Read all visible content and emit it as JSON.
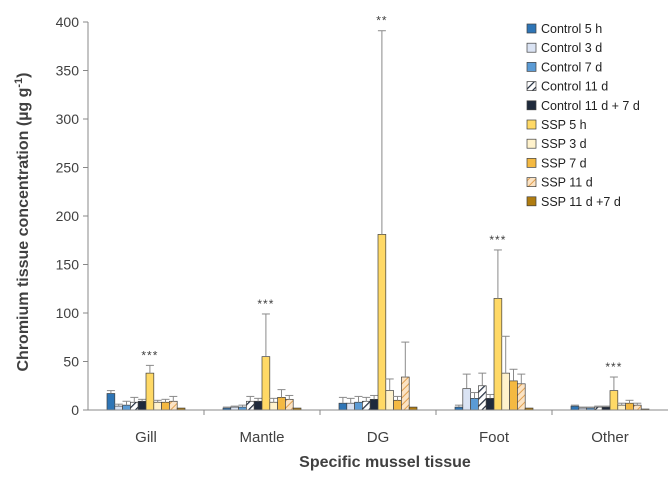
{
  "chart_data": {
    "type": "bar",
    "ylabel": "Chromium tissue concentration (µg g⁻¹)",
    "ylabel_parts": [
      "Chromium tissue concentration (µg g",
      "-1",
      ")"
    ],
    "xlabel": "Specific mussel tissue",
    "ylim": [
      0,
      400
    ],
    "yticks": [
      "0",
      "50",
      "100",
      "150",
      "200",
      "250",
      "300",
      "350",
      "400"
    ],
    "categories": [
      "Gill",
      "Mantle",
      "DG",
      "Foot",
      "Other"
    ],
    "legend_position": "top-right",
    "series": [
      {
        "name": "Control 5 h",
        "color": "#2e75b6",
        "pattern": "solid",
        "values": [
          17,
          2,
          7,
          3,
          4
        ],
        "errors": [
          3,
          1,
          6,
          2,
          1
        ]
      },
      {
        "name": "Control 3 d",
        "color": "#dae3f3",
        "pattern": "solid",
        "values": [
          4,
          3,
          7,
          22,
          2
        ],
        "errors": [
          2,
          1,
          5,
          15,
          1
        ]
      },
      {
        "name": "Control 7 d",
        "color": "#5b9bd5",
        "pattern": "solid",
        "values": [
          5,
          3,
          8,
          12,
          2
        ],
        "errors": [
          4,
          2,
          6,
          6,
          1
        ]
      },
      {
        "name": "Control 11 d",
        "color": "#ffffff",
        "pattern": "hatch",
        "values": [
          8,
          9,
          9,
          25,
          3
        ],
        "errors": [
          5,
          5,
          4,
          13,
          1
        ]
      },
      {
        "name": "Control 11 d + 7 d",
        "color": "#1f2a3c",
        "pattern": "solid",
        "values": [
          9,
          9,
          11,
          12,
          3
        ],
        "errors": [
          2,
          3,
          4,
          4,
          1
        ]
      },
      {
        "name": "SSP 5 h",
        "color": "#ffd966",
        "pattern": "solid",
        "values": [
          38,
          55,
          181,
          115,
          20
        ],
        "errors": [
          8,
          44,
          210,
          50,
          14
        ]
      },
      {
        "name": "SSP 3 d",
        "color": "#fff2cc",
        "pattern": "solid",
        "values": [
          8,
          8,
          20,
          38,
          5
        ],
        "errors": [
          2,
          4,
          12,
          38,
          2
        ]
      },
      {
        "name": "SSP 7 d",
        "color": "#f4b942",
        "pattern": "solid",
        "values": [
          8,
          13,
          10,
          30,
          7
        ],
        "errors": [
          3,
          8,
          4,
          12,
          3
        ]
      },
      {
        "name": "SSP 11 d",
        "color": "#f8cbad",
        "pattern": "hatch-light",
        "values": [
          9,
          11,
          34,
          27,
          5
        ],
        "errors": [
          5,
          4,
          36,
          10,
          2
        ]
      },
      {
        "name": "SSP 11 d +7 d",
        "color": "#b07c10",
        "pattern": "solid",
        "values": [
          2,
          2,
          3,
          2,
          1
        ],
        "errors": [
          0,
          0,
          0,
          0,
          0
        ]
      }
    ],
    "annotations": [
      {
        "category": "Gill",
        "series": "SSP 5 h",
        "text": "***"
      },
      {
        "category": "Mantle",
        "series": "SSP 5 h",
        "text": "***"
      },
      {
        "category": "DG",
        "series": "SSP 5 h",
        "text": "**"
      },
      {
        "category": "Foot",
        "series": "SSP 5 h",
        "text": "***"
      },
      {
        "category": "Other",
        "series": "SSP 5 h",
        "text": "***"
      }
    ]
  }
}
